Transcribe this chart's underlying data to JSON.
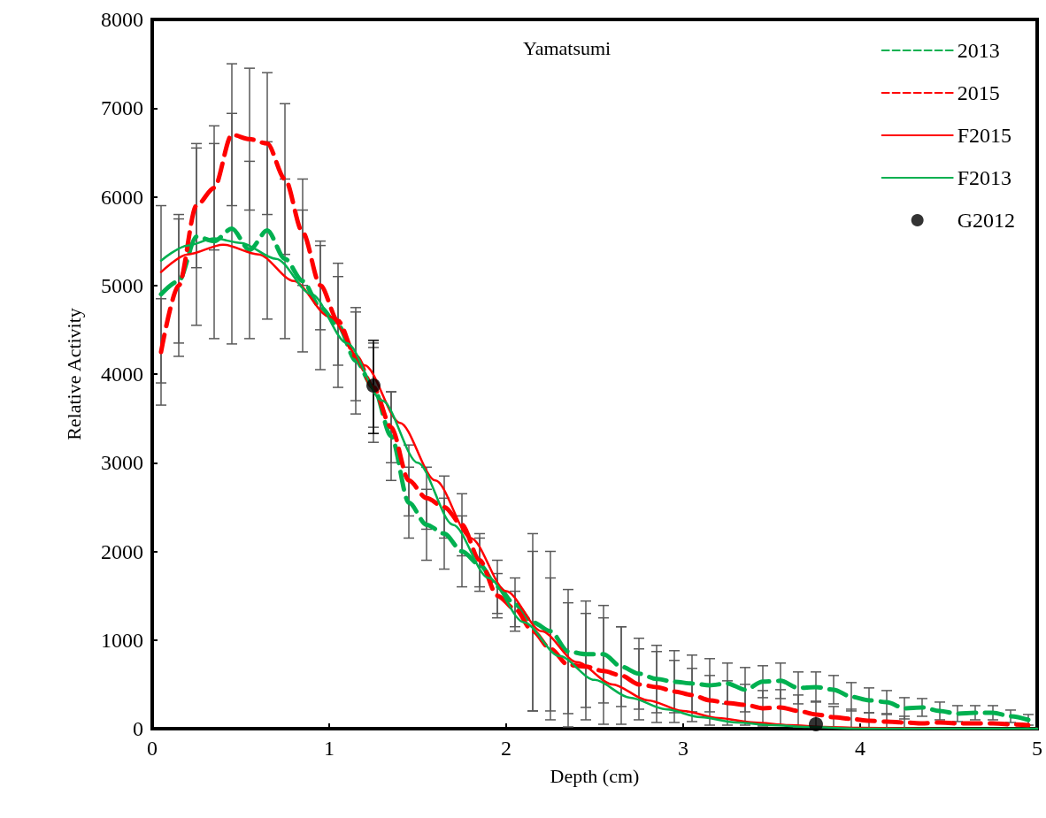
{
  "chart_data": {
    "type": "line",
    "title": "Yamatsumi",
    "xlabel": "Depth (cm)",
    "ylabel": "Relative Activity",
    "xlim": [
      0,
      5
    ],
    "xticks": [
      0,
      1,
      2,
      3,
      4,
      5
    ],
    "ylim": [
      0,
      8000
    ],
    "yticks": [
      0,
      1000,
      2000,
      3000,
      4000,
      5000,
      6000,
      7000,
      8000
    ],
    "grid": false,
    "legend": "top right",
    "x": [
      0.05,
      0.15,
      0.25,
      0.35,
      0.45,
      0.55,
      0.65,
      0.75,
      0.85,
      0.95,
      1.05,
      1.15,
      1.25,
      1.35,
      1.45,
      1.55,
      1.65,
      1.75,
      1.85,
      1.95,
      2.05,
      2.15,
      2.25,
      2.35,
      2.45,
      2.55,
      2.65,
      2.75,
      2.85,
      2.95,
      3.05,
      3.15,
      3.25,
      3.35,
      3.45,
      3.55,
      3.65,
      3.75,
      3.85,
      3.95,
      4.05,
      4.15,
      4.25,
      4.35,
      4.45,
      4.55,
      4.65,
      4.75,
      4.85,
      4.95
    ],
    "series": [
      {
        "name": "2013",
        "color": "#00b050",
        "line_style": "dashed",
        "marker": "none",
        "values": [
          4900,
          5050,
          5550,
          5500,
          5640,
          5400,
          5620,
          5300,
          5050,
          4750,
          4550,
          4150,
          3850,
          3300,
          2550,
          2300,
          2200,
          2000,
          1850,
          1600,
          1400,
          1200,
          1100,
          870,
          840,
          840,
          700,
          620,
          560,
          530,
          510,
          490,
          510,
          440,
          530,
          540,
          460,
          470,
          440,
          360,
          320,
          300,
          230,
          240,
          200,
          170,
          180,
          180,
          140,
          100
        ],
        "errors": [
          1000,
          700,
          1000,
          1100,
          1300,
          1000,
          1000,
          900,
          800,
          700,
          700,
          600,
          450,
          500,
          400,
          400,
          400,
          400,
          300,
          300,
          300,
          1000,
          900,
          700,
          600,
          550,
          450,
          400,
          380,
          350,
          320,
          300,
          230,
          250,
          180,
          200,
          180,
          170,
          160,
          160,
          140,
          130,
          120,
          100,
          100,
          90,
          80,
          80,
          70,
          60
        ]
      },
      {
        "name": "2015",
        "color": "#ff0000",
        "line_style": "dashed",
        "marker": "none",
        "values": [
          4250,
          5000,
          5900,
          6100,
          6700,
          6650,
          6600,
          6200,
          5600,
          5000,
          4600,
          4200,
          3850,
          3400,
          2800,
          2600,
          2500,
          2300,
          1900,
          1500,
          1350,
          1100,
          900,
          720,
          700,
          650,
          600,
          500,
          470,
          420,
          380,
          320,
          290,
          270,
          230,
          240,
          200,
          160,
          130,
          110,
          90,
          80,
          70,
          60,
          70,
          60,
          60,
          60,
          50,
          40
        ],
        "errors": [
          600,
          800,
          700,
          700,
          800,
          800,
          800,
          850,
          600,
          500,
          500,
          500,
          [
            3230,
            4350
          ],
          400,
          400,
          350,
          350,
          350,
          300,
          250,
          200,
          900,
          800,
          700,
          600,
          600,
          550,
          400,
          400,
          350,
          300,
          280,
          250,
          230,
          200,
          200,
          180,
          150,
          120,
          110,
          90,
          80,
          70,
          null,
          null,
          null,
          null,
          null,
          null,
          null
        ]
      },
      {
        "name": "F2015",
        "color": "#ff0000",
        "line_style": "solid",
        "marker": "none",
        "x": [
          0.05,
          0.2,
          0.4,
          0.6,
          0.8,
          1.0,
          1.2,
          1.4,
          1.6,
          1.8,
          2.0,
          2.2,
          2.4,
          2.6,
          2.8,
          3.0,
          3.2,
          3.4,
          3.6,
          3.8,
          4.0,
          4.5,
          5.0
        ],
        "values": [
          5150,
          5350,
          5460,
          5350,
          5050,
          4650,
          4100,
          3450,
          2800,
          2150,
          1550,
          1100,
          750,
          500,
          320,
          200,
          120,
          70,
          40,
          20,
          10,
          0,
          0
        ]
      },
      {
        "name": "F2013",
        "color": "#00b050",
        "line_style": "solid",
        "marker": "none",
        "x": [
          0.05,
          0.2,
          0.35,
          0.5,
          0.7,
          0.9,
          1.1,
          1.3,
          1.5,
          1.7,
          1.9,
          2.1,
          2.3,
          2.5,
          2.7,
          2.9,
          3.1,
          3.3,
          3.5,
          3.7,
          4.0,
          4.5,
          5.0
        ],
        "values": [
          5280,
          5450,
          5530,
          5480,
          5300,
          4900,
          4350,
          3700,
          3000,
          2300,
          1700,
          1200,
          820,
          550,
          350,
          220,
          130,
          70,
          40,
          20,
          0,
          0,
          0
        ]
      },
      {
        "name": "G2012",
        "type": "scatter",
        "color": "#000000",
        "marker": "circle",
        "x": [
          1.25,
          3.75
        ],
        "values": [
          3870,
          50
        ],
        "errors": [
          [
            3330,
            4380
          ],
          null
        ]
      }
    ]
  }
}
